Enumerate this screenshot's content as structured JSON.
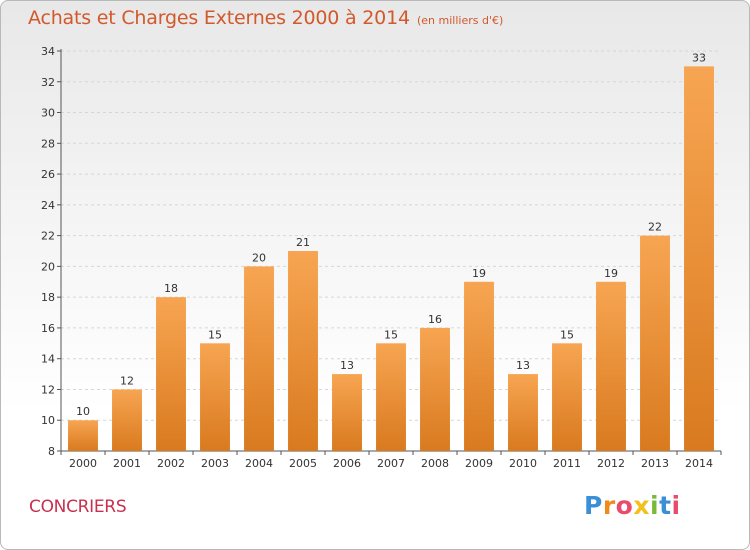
{
  "header": {
    "title": "Achats et Charges Externes 2000 à 2014",
    "subtitle": "(en milliers d'€)"
  },
  "footer": {
    "commune": "CONCRIERS",
    "logo_letters": [
      {
        "ch": "P",
        "color": "#3a8fd6"
      },
      {
        "ch": "r",
        "color": "#f08a1c"
      },
      {
        "ch": "o",
        "color": "#e94b6f"
      },
      {
        "ch": "x",
        "color": "#f2c11b"
      },
      {
        "ch": "i",
        "color": "#7ab93a"
      },
      {
        "ch": "t",
        "color": "#3a8fd6"
      },
      {
        "ch": "i",
        "color": "#e94b6f"
      }
    ]
  },
  "chart_data": {
    "type": "bar",
    "title": "Achats et Charges Externes 2000 à 2014",
    "subtitle": "(en milliers d'€)",
    "categories": [
      "2000",
      "2001",
      "2002",
      "2003",
      "2004",
      "2005",
      "2006",
      "2007",
      "2008",
      "2009",
      "2010",
      "2011",
      "2012",
      "2013",
      "2014"
    ],
    "values": [
      10,
      12,
      18,
      15,
      20,
      21,
      13,
      15,
      16,
      19,
      13,
      15,
      19,
      22,
      33
    ],
    "ylim": [
      8,
      34
    ],
    "yticks": [
      8,
      10,
      12,
      14,
      16,
      18,
      20,
      22,
      24,
      26,
      28,
      30,
      32,
      34
    ],
    "grid": true,
    "bar_color_top": "#f7a552",
    "bar_color_bottom": "#d97a1f"
  }
}
